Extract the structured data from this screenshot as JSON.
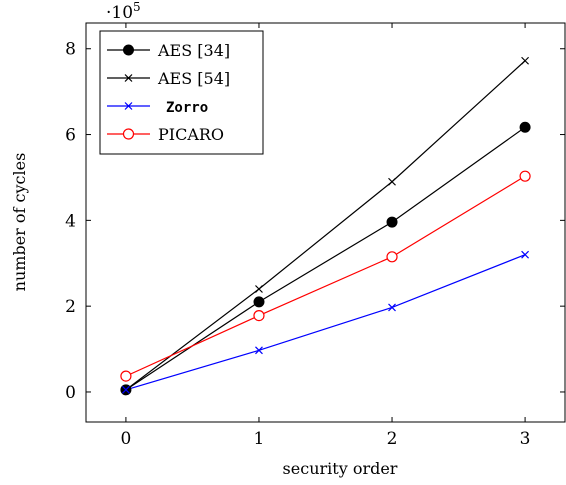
{
  "chart_data": {
    "type": "line",
    "xlabel": "security order",
    "ylabel": "number of cycles",
    "y_multiplier_label": "·10",
    "y_multiplier_exponent": "5",
    "x_ticks": [
      0,
      1,
      2,
      3
    ],
    "y_ticks": [
      0,
      2,
      4,
      6,
      8
    ],
    "xlim": [
      -0.3,
      3.3
    ],
    "ylim": [
      -0.7,
      8.6
    ],
    "y_scale_factor": 100000,
    "legend_position": "top-left",
    "grid": false,
    "x": [
      0,
      1,
      2,
      3
    ],
    "series": [
      {
        "name": "AES [34]",
        "values": [
          0.05,
          2.1,
          3.96,
          6.17
        ],
        "color": "#000000",
        "marker": "filled-circle"
      },
      {
        "name": "AES [54]",
        "values": [
          0.05,
          2.4,
          4.9,
          7.72
        ],
        "color": "#000000",
        "marker": "cross"
      },
      {
        "name": "Zorro",
        "values": [
          0.05,
          0.97,
          1.97,
          3.2
        ],
        "color": "#0000ff",
        "marker": "cross",
        "monospace": true
      },
      {
        "name": "PICARO",
        "values": [
          0.37,
          1.78,
          3.15,
          5.03
        ],
        "color": "#ff0000",
        "marker": "open-circle"
      }
    ]
  }
}
